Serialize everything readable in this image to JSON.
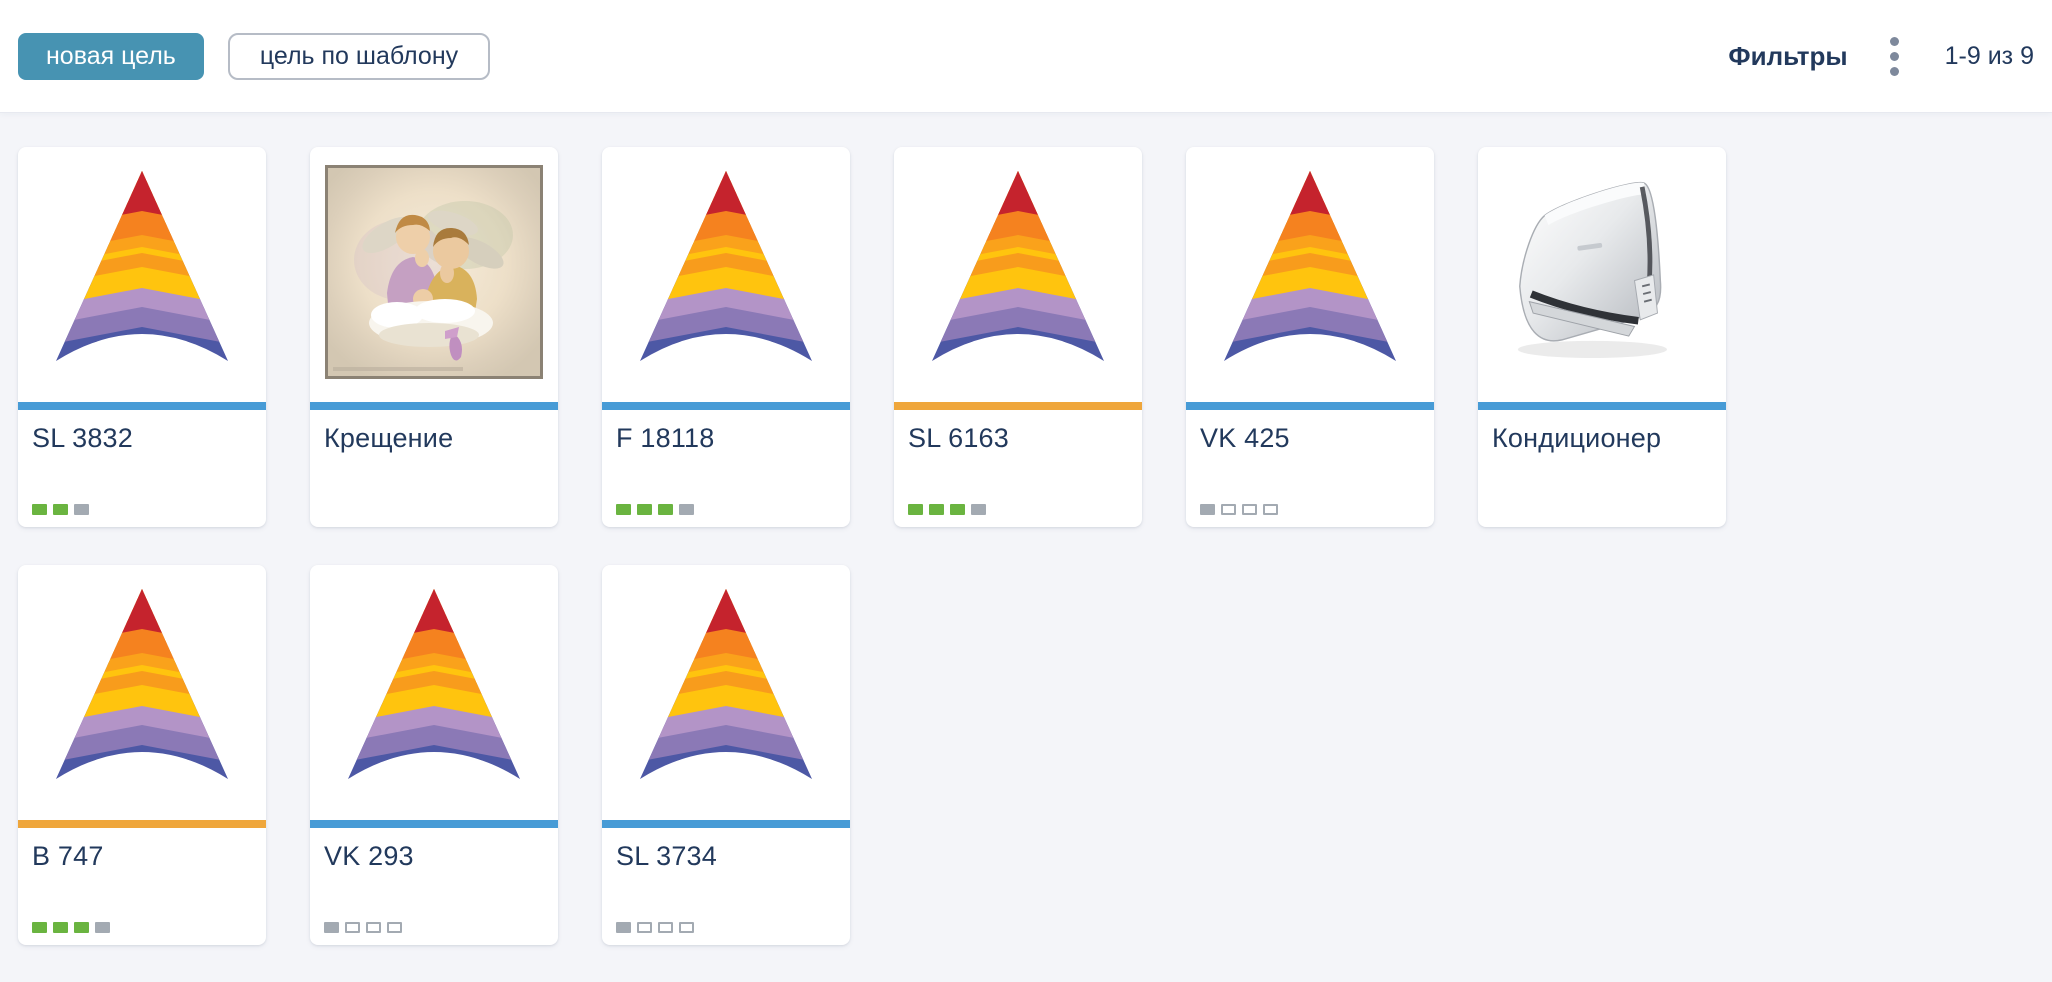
{
  "header": {
    "new_goal_button": "новая цель",
    "template_goal_button": "цель по шаблону",
    "filters_label": "Фильтры",
    "kebab_icon": "vertical-dots-menu-icon",
    "pagination": "1-9 из 9"
  },
  "colors": {
    "accent_teal": "#4793b2",
    "bar_blue": "#479bd6",
    "bar_orange": "#efa63b",
    "progress_green": "#6ab440",
    "progress_gray": "#a3aab2",
    "title_navy": "#22395c",
    "page_bg": "#f4f5f9"
  },
  "cards": [
    {
      "title": "SL 3832",
      "image": "goal-arrow-logo",
      "bar_color": "blue",
      "progress": [
        "green",
        "green",
        "gray"
      ]
    },
    {
      "title": "Крещение",
      "image": "baptism-angels-photo",
      "bar_color": "blue",
      "progress": []
    },
    {
      "title": "F 18118",
      "image": "goal-arrow-logo",
      "bar_color": "blue",
      "progress": [
        "green",
        "green",
        "green",
        "gray"
      ]
    },
    {
      "title": "SL 6163",
      "image": "goal-arrow-logo",
      "bar_color": "orange",
      "progress": [
        "green",
        "green",
        "green",
        "gray"
      ]
    },
    {
      "title": "VK 425",
      "image": "goal-arrow-logo",
      "bar_color": "blue",
      "progress": [
        "gray",
        "empty",
        "empty",
        "empty"
      ]
    },
    {
      "title": "Кондиционер",
      "image": "air-conditioner-photo",
      "bar_color": "blue",
      "progress": []
    },
    {
      "title": "B 747",
      "image": "goal-arrow-logo",
      "bar_color": "orange",
      "progress": [
        "green",
        "green",
        "green",
        "gray"
      ]
    },
    {
      "title": "VK 293",
      "image": "goal-arrow-logo",
      "bar_color": "blue",
      "progress": [
        "gray",
        "empty",
        "empty",
        "empty"
      ]
    },
    {
      "title": "SL 3734",
      "image": "goal-arrow-logo",
      "bar_color": "blue",
      "progress": [
        "gray",
        "empty",
        "empty",
        "empty"
      ]
    }
  ]
}
